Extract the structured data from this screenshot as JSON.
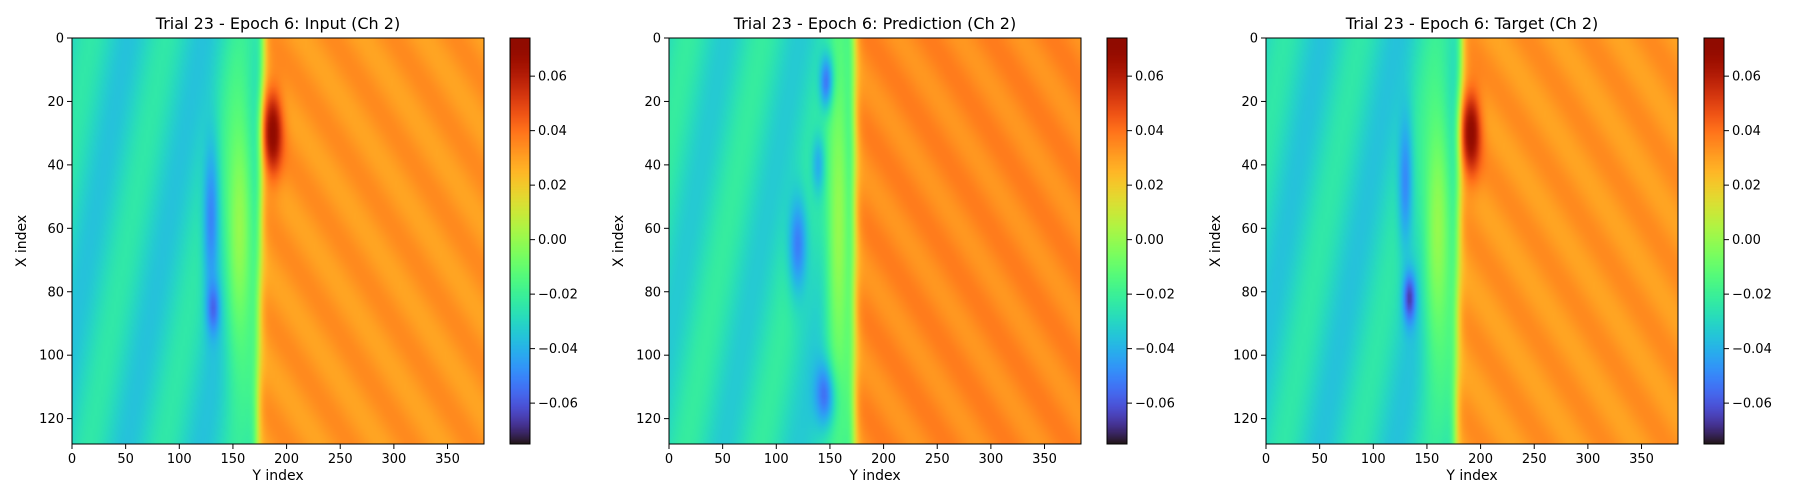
{
  "chart_data": [
    {
      "type": "heatmap",
      "title": "Trial 23 - Epoch 6: Input (Ch 2)",
      "xlabel": "Y index",
      "ylabel": "X index",
      "xlim": [
        0,
        384
      ],
      "ylim": [
        128,
        0
      ],
      "xticks": [
        0,
        50,
        100,
        150,
        200,
        250,
        300,
        350
      ],
      "yticks": [
        0,
        20,
        40,
        60,
        80,
        100,
        120
      ],
      "colormap": "turbo",
      "colorbar_range": [
        -0.075,
        0.074
      ],
      "colorbar_ticks": [
        "0.06",
        "0.04",
        "0.02",
        "0.00",
        "−0.02",
        "−0.04",
        "−0.06"
      ],
      "colorbar_tick_values": [
        0.06,
        0.04,
        0.02,
        0.0,
        -0.02,
        -0.04,
        -0.06
      ],
      "background_left_value": -0.03,
      "background_right_value": 0.032,
      "front_y_top": 178,
      "front_y_bottom": 172,
      "features": [
        {
          "kind": "low",
          "y": 130,
          "x": 57,
          "ry": 8,
          "rx": 26,
          "value": -0.052
        },
        {
          "kind": "low",
          "y": 132,
          "x": 85,
          "ry": 6,
          "rx": 8,
          "value": -0.06
        },
        {
          "kind": "high",
          "y": 187,
          "x": 30,
          "ry": 9,
          "rx": 13,
          "value": 0.072
        },
        {
          "kind": "lightband",
          "y": 156,
          "x": 60,
          "ry": 14,
          "rx": 45,
          "value": 0.0
        }
      ]
    },
    {
      "type": "heatmap",
      "title": "Trial 23 - Epoch 6: Prediction (Ch 2)",
      "xlabel": "Y index",
      "ylabel": "X index",
      "xlim": [
        0,
        384
      ],
      "ylim": [
        128,
        0
      ],
      "xticks": [
        0,
        50,
        100,
        150,
        200,
        250,
        300,
        350
      ],
      "yticks": [
        0,
        20,
        40,
        60,
        80,
        100,
        120
      ],
      "colormap": "turbo",
      "colorbar_range": [
        -0.075,
        0.074
      ],
      "colorbar_ticks": [
        "0.06",
        "0.04",
        "0.02",
        "0.00",
        "−0.02",
        "−0.04",
        "−0.06"
      ],
      "colorbar_tick_values": [
        0.06,
        0.04,
        0.02,
        0.0,
        -0.02,
        -0.04,
        -0.06
      ],
      "background_left_value": -0.028,
      "background_right_value": 0.035,
      "front_y_top": 172,
      "front_y_bottom": 172,
      "features": [
        {
          "kind": "low",
          "y": 148,
          "x": 14,
          "ry": 7,
          "rx": 9,
          "value": -0.07
        },
        {
          "kind": "low",
          "y": 120,
          "x": 65,
          "ry": 9,
          "rx": 16,
          "value": -0.052
        },
        {
          "kind": "low",
          "y": 147,
          "x": 112,
          "ry": 10,
          "rx": 10,
          "value": -0.065
        },
        {
          "kind": "low",
          "y": 140,
          "x": 40,
          "ry": 7,
          "rx": 10,
          "value": -0.045
        },
        {
          "kind": "lightband",
          "y": 158,
          "x": 60,
          "ry": 12,
          "rx": 60,
          "value": 0.0
        }
      ]
    },
    {
      "type": "heatmap",
      "title": "Trial 23 - Epoch 6: Target (Ch 2)",
      "xlabel": "Y index",
      "ylabel": "X index",
      "xlim": [
        0,
        384
      ],
      "ylim": [
        128,
        0
      ],
      "xticks": [
        0,
        50,
        100,
        150,
        200,
        250,
        300,
        350
      ],
      "yticks": [
        0,
        20,
        40,
        60,
        80,
        100,
        120
      ],
      "colormap": "turbo",
      "colorbar_range": [
        -0.075,
        0.074
      ],
      "colorbar_ticks": [
        "0.06",
        "0.04",
        "0.02",
        "0.00",
        "−0.02",
        "−0.04",
        "−0.06"
      ],
      "colorbar_tick_values": [
        0.06,
        0.04,
        0.02,
        0.0,
        -0.02,
        -0.04,
        -0.06
      ],
      "background_left_value": -0.03,
      "background_right_value": 0.032,
      "front_y_top": 182,
      "front_y_bottom": 176,
      "features": [
        {
          "kind": "low",
          "y": 130,
          "x": 45,
          "ry": 7,
          "rx": 22,
          "value": -0.05
        },
        {
          "kind": "low",
          "y": 134,
          "x": 82,
          "ry": 6,
          "rx": 8,
          "value": -0.068
        },
        {
          "kind": "high",
          "y": 191,
          "x": 30,
          "ry": 9,
          "rx": 13,
          "value": 0.072
        },
        {
          "kind": "lightband",
          "y": 160,
          "x": 60,
          "ry": 14,
          "rx": 45,
          "value": 0.0
        }
      ]
    }
  ]
}
